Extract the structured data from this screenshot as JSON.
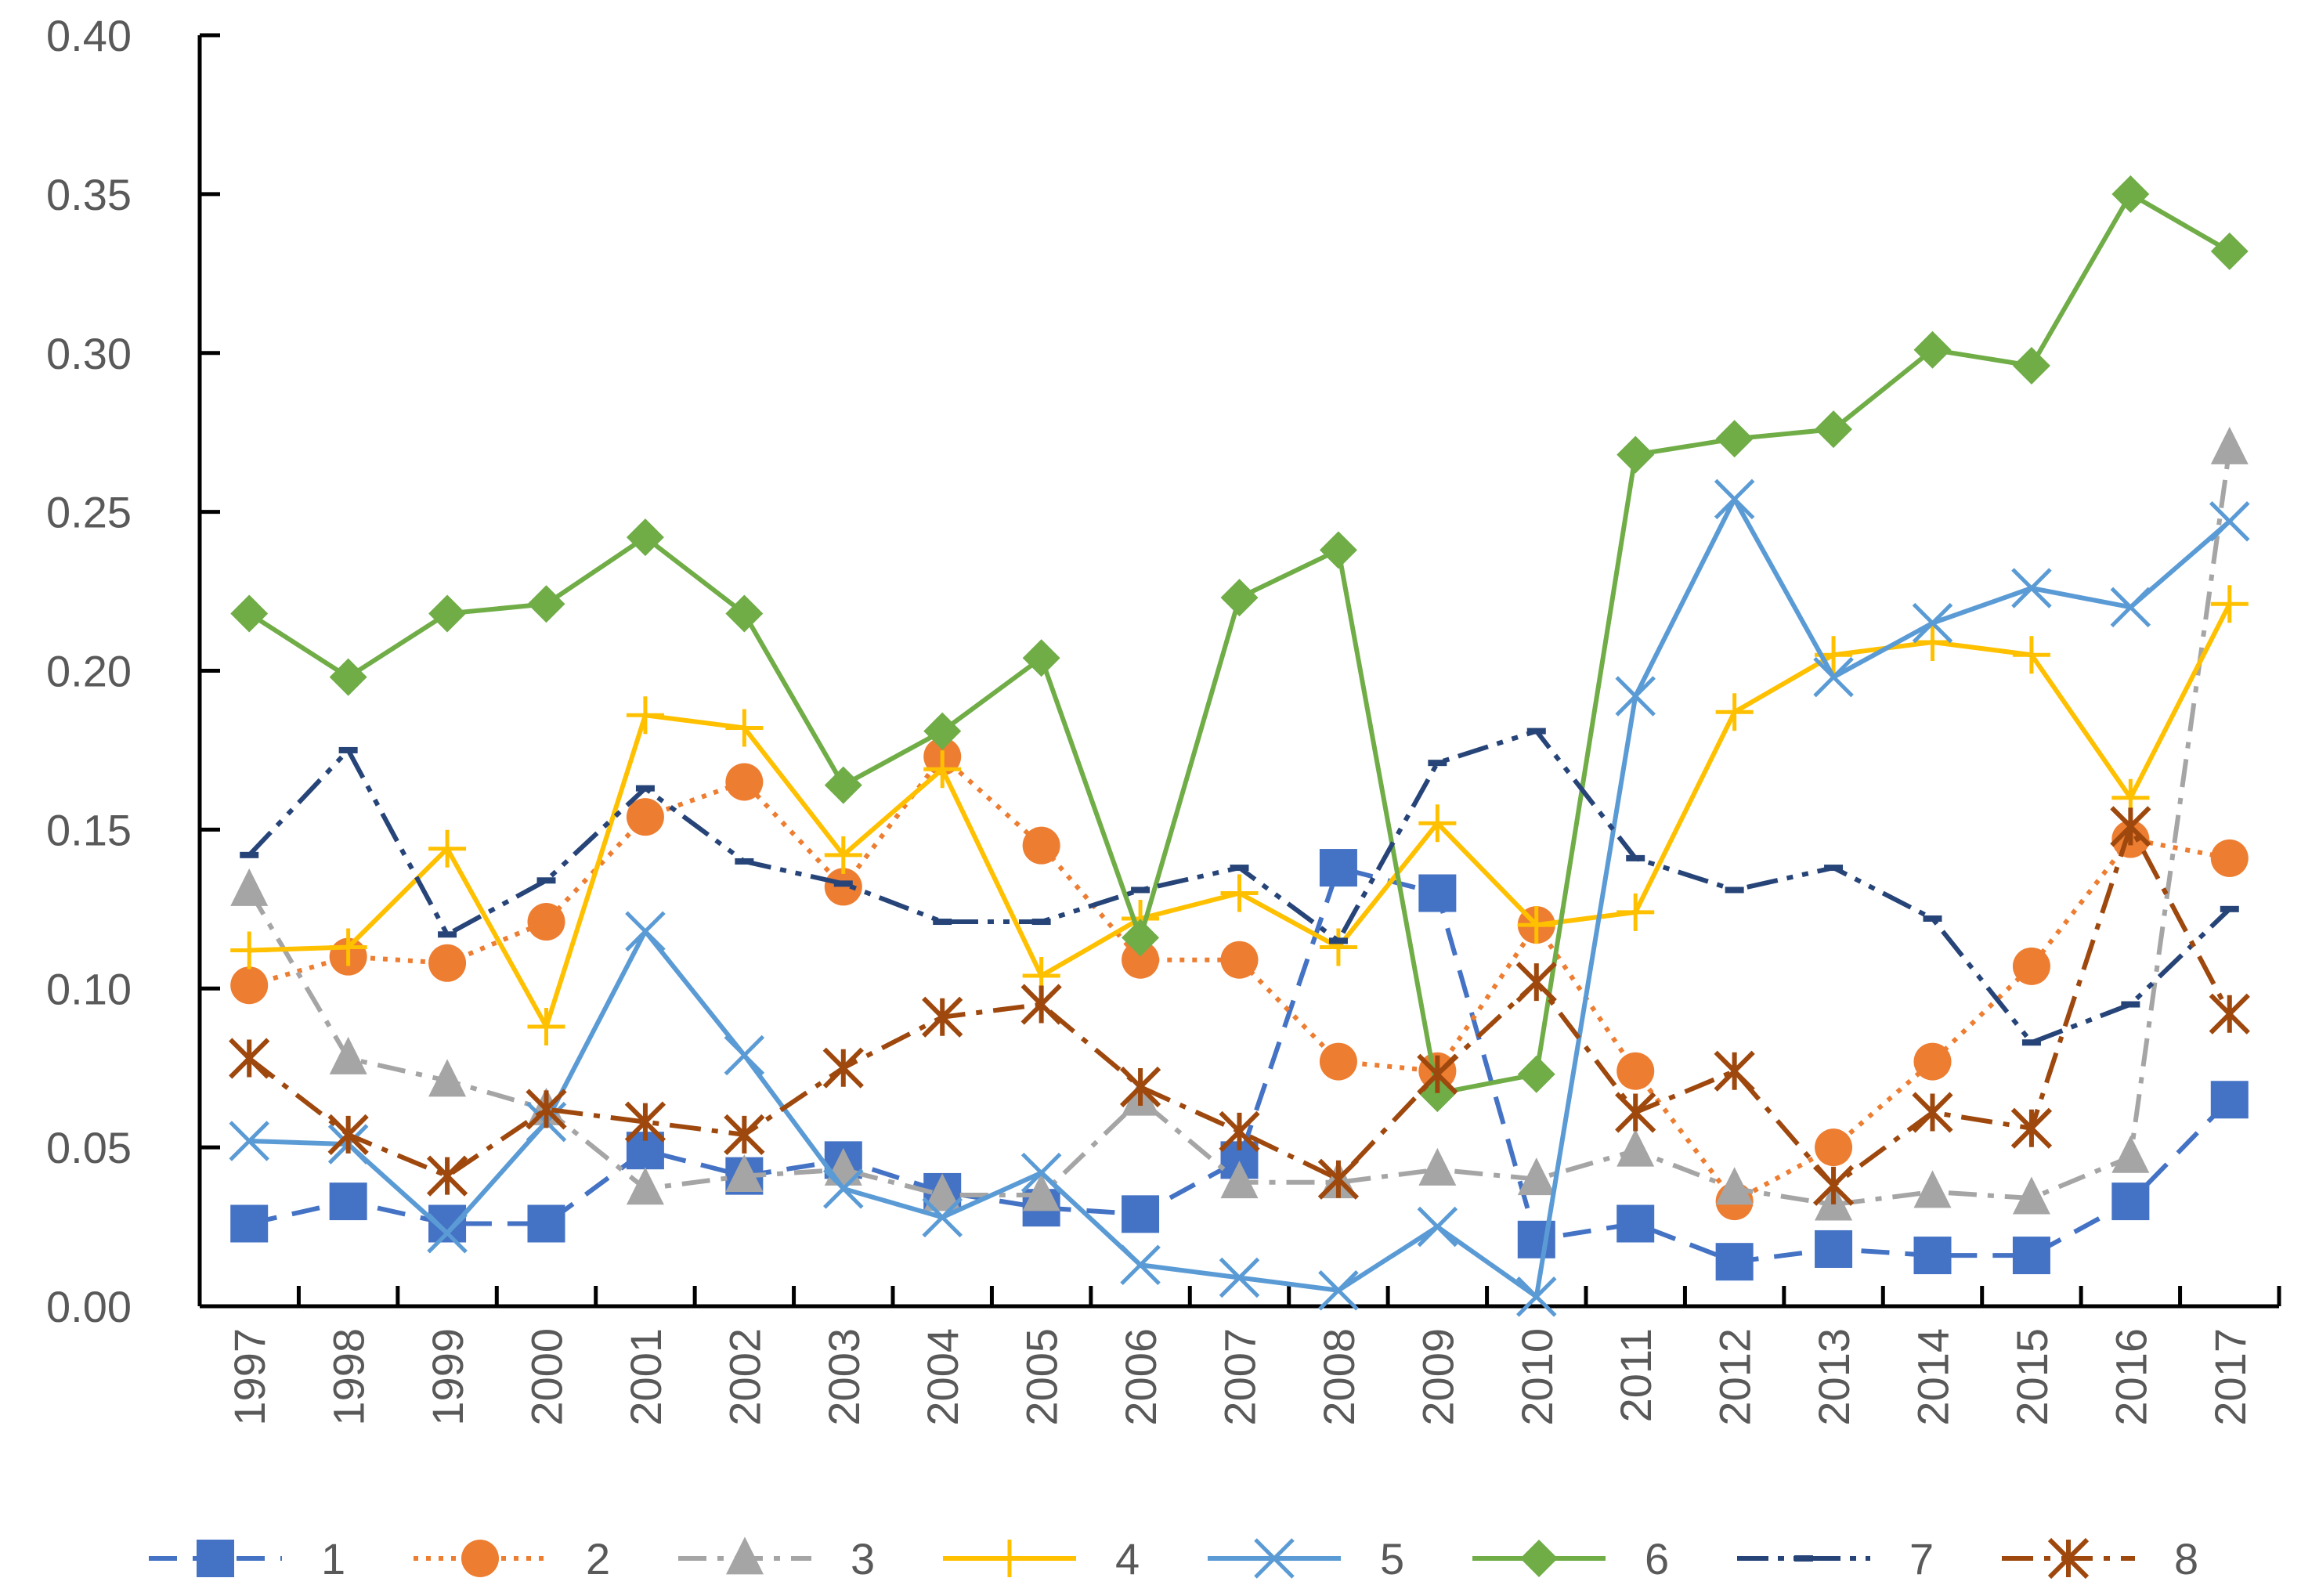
{
  "chart_data": {
    "type": "line",
    "title": "",
    "xlabel": "",
    "ylabel": "",
    "ylim": [
      0,
      0.4
    ],
    "yticks": [
      "0.00",
      "0.05",
      "0.10",
      "0.15",
      "0.20",
      "0.25",
      "0.30",
      "0.35",
      "0.40"
    ],
    "ytick_values": [
      0,
      0.05,
      0.1,
      0.15,
      0.2,
      0.25,
      0.3,
      0.35,
      0.4
    ],
    "grid": false,
    "legend_position": "bottom",
    "categories": [
      "1997",
      "1998",
      "1999",
      "2000",
      "2001",
      "2002",
      "2003",
      "2004",
      "2005",
      "2006",
      "2007",
      "2008",
      "2009",
      "2010",
      "2011",
      "2012",
      "2013",
      "2014",
      "2015",
      "2016",
      "2017"
    ],
    "series": [
      {
        "name": "1",
        "color": "#4472C4",
        "dash": "dash",
        "marker": "square",
        "values": [
          0.026,
          0.033,
          0.026,
          0.026,
          0.049,
          0.041,
          0.046,
          0.036,
          0.031,
          0.029,
          0.046,
          0.138,
          0.13,
          0.021,
          0.026,
          0.014,
          0.018,
          0.016,
          0.016,
          0.033,
          0.065
        ]
      },
      {
        "name": "2",
        "color": "#ED7D31",
        "dash": "dot",
        "marker": "circle",
        "values": [
          0.101,
          0.11,
          0.108,
          0.121,
          0.154,
          0.165,
          0.132,
          0.173,
          0.145,
          0.109,
          0.109,
          0.077,
          0.074,
          0.12,
          0.074,
          0.033,
          0.05,
          0.077,
          0.107,
          0.147,
          0.141
        ]
      },
      {
        "name": "3",
        "color": "#A5A5A5",
        "dash": "dashdot",
        "marker": "triangle",
        "values": [
          0.131,
          0.078,
          0.071,
          0.062,
          0.037,
          0.041,
          0.043,
          0.035,
          0.035,
          0.065,
          0.039,
          0.039,
          0.043,
          0.04,
          0.049,
          0.037,
          0.032,
          0.036,
          0.034,
          0.047,
          0.27
        ]
      },
      {
        "name": "4",
        "color": "#FFC000",
        "dash": "solid",
        "marker": "plus",
        "values": [
          0.112,
          0.113,
          0.144,
          0.088,
          0.186,
          0.182,
          0.142,
          0.169,
          0.104,
          0.122,
          0.13,
          0.113,
          0.152,
          0.12,
          0.124,
          0.187,
          0.205,
          0.209,
          0.205,
          0.16,
          0.221
        ]
      },
      {
        "name": "5",
        "color": "#5B9BD5",
        "dash": "solid",
        "marker": "x",
        "values": [
          0.052,
          0.051,
          0.023,
          0.058,
          0.118,
          0.079,
          0.037,
          0.028,
          0.042,
          0.013,
          0.009,
          0.005,
          0.025,
          0.003,
          0.192,
          0.254,
          0.198,
          0.215,
          0.226,
          0.22,
          0.247
        ]
      },
      {
        "name": "6",
        "color": "#70AD47",
        "dash": "solid",
        "marker": "diamond",
        "values": [
          0.218,
          0.198,
          0.218,
          0.221,
          0.242,
          0.218,
          0.164,
          0.181,
          0.204,
          0.116,
          0.223,
          0.238,
          0.067,
          0.073,
          0.268,
          0.273,
          0.276,
          0.301,
          0.296,
          0.35,
          0.332
        ]
      },
      {
        "name": "7",
        "color": "#264478",
        "dash": "longdashdotdot",
        "marker": "dash",
        "values": [
          0.142,
          0.175,
          0.117,
          0.134,
          0.163,
          0.14,
          0.133,
          0.121,
          0.121,
          0.131,
          0.138,
          0.115,
          0.171,
          0.181,
          0.141,
          0.131,
          0.138,
          0.122,
          0.083,
          0.095,
          0.125
        ]
      },
      {
        "name": "8",
        "color": "#9E480E",
        "dash": "longdashdot",
        "marker": "star",
        "values": [
          0.078,
          0.054,
          0.041,
          0.062,
          0.058,
          0.054,
          0.075,
          0.091,
          0.095,
          0.069,
          0.055,
          0.04,
          0.073,
          0.102,
          0.061,
          0.074,
          0.038,
          0.061,
          0.056,
          0.151,
          0.092
        ]
      }
    ]
  }
}
